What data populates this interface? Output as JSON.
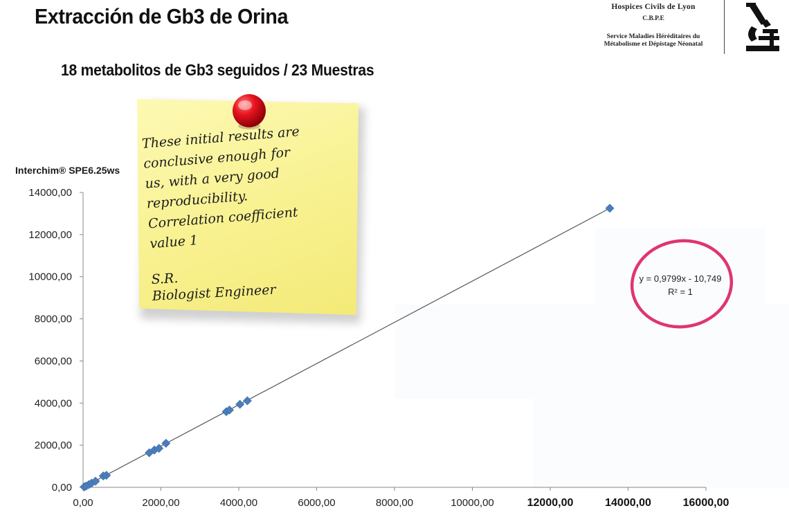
{
  "header": {
    "title": "Extracción de Gb3 de Orina",
    "subtitle": "18 metabolitos de Gb3 seguidos / 23 Muestras"
  },
  "institution": {
    "name": "Hospices Civils de Lyon",
    "abbreviation": "C.B.P.E",
    "service_line1": "Service Maladies Héréditaires du",
    "service_line2": "Métabolisme et Dépistage Néonatal",
    "logo_icon": "microscope-icon"
  },
  "note": {
    "lines": [
      "These initial results are",
      "conclusive enough for",
      "us, with a very good",
      "reproducibility.",
      "Correlation coefficient",
      "value 1"
    ],
    "signature_initials": "S.R.",
    "signature_title": "Biologist Engineer",
    "colors": {
      "paper": "#f8f18f",
      "pin": "#e8141e"
    }
  },
  "chart_data": {
    "type": "scatter",
    "ylabel": "Interchim® SPE6.25ws",
    "xlim": [
      0,
      16000
    ],
    "ylim": [
      0,
      14000
    ],
    "x_ticks": [
      0,
      2000,
      4000,
      6000,
      8000,
      10000,
      12000,
      14000,
      16000
    ],
    "y_ticks": [
      0,
      2000,
      4000,
      6000,
      8000,
      10000,
      12000,
      14000
    ],
    "x_tick_labels": [
      "0,00",
      "2000,00",
      "4000,00",
      "6000,00",
      "8000,00",
      "10000,00",
      "12000,00",
      "14000,00",
      "16000,00"
    ],
    "y_tick_labels": [
      "0,00",
      "2000,00",
      "4000,00",
      "6000,00",
      "8000,00",
      "10000,00",
      "12000,00",
      "14000,00"
    ],
    "points": [
      {
        "x": 30,
        "y": 20
      },
      {
        "x": 80,
        "y": 60
      },
      {
        "x": 150,
        "y": 130
      },
      {
        "x": 220,
        "y": 200
      },
      {
        "x": 320,
        "y": 290
      },
      {
        "x": 520,
        "y": 540
      },
      {
        "x": 600,
        "y": 570
      },
      {
        "x": 1700,
        "y": 1640
      },
      {
        "x": 1830,
        "y": 1770
      },
      {
        "x": 1950,
        "y": 1850
      },
      {
        "x": 2130,
        "y": 2090
      },
      {
        "x": 3680,
        "y": 3590
      },
      {
        "x": 3760,
        "y": 3670
      },
      {
        "x": 4030,
        "y": 3940
      },
      {
        "x": 4220,
        "y": 4110
      },
      {
        "x": 13530,
        "y": 13250
      }
    ],
    "trendline": {
      "equation": "y = 0,9799x - 10,749",
      "r_squared": "R² = 1",
      "slope": 0.9799,
      "intercept": -10.749,
      "x_range": [
        0,
        13530
      ]
    },
    "colors": {
      "marker": "#4a7ebb",
      "trendline": "#555555",
      "axis": "#888888",
      "circle": "#e0356f"
    }
  }
}
